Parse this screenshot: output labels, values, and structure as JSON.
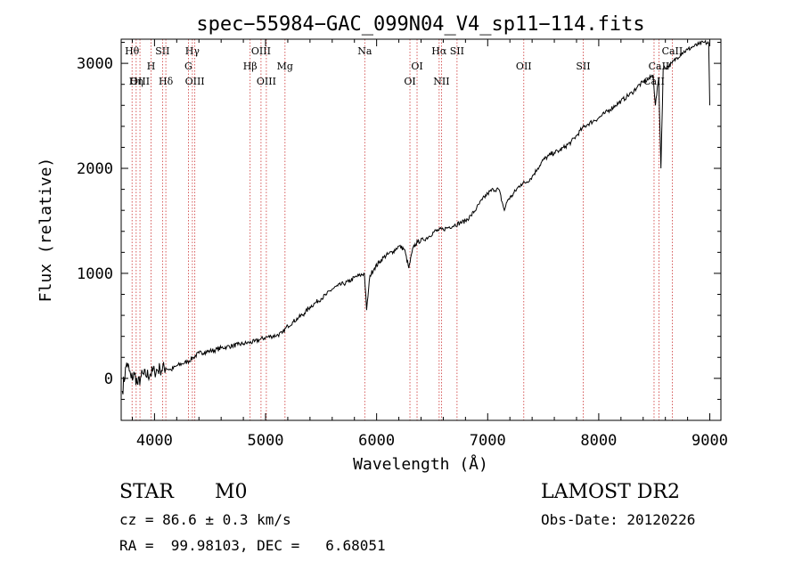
{
  "chart_data": {
    "type": "line",
    "title": "spec−55984−GAC_099N04_V4_sp11−114.fits",
    "xlabel": "Wavelength (Å)",
    "ylabel": "Flux (relative)",
    "xlim": [
      3700,
      9100
    ],
    "ylim": [
      -400,
      3230
    ],
    "xticks": [
      4000,
      5000,
      6000,
      7000,
      8000,
      9000
    ],
    "xtick_labels": [
      "4000",
      "5000",
      "6000",
      "7000",
      "8000",
      "9000"
    ],
    "yticks": [
      0,
      1000,
      2000,
      3000
    ],
    "ytick_labels": [
      "0",
      "1000",
      "2000",
      "3000"
    ],
    "spectrum": {
      "x": [
        3710,
        3750,
        3790,
        3820,
        3850,
        3880,
        3920,
        3960,
        4000,
        4050,
        4100,
        4150,
        4200,
        4250,
        4300,
        4350,
        4400,
        4450,
        4500,
        4550,
        4600,
        4650,
        4700,
        4750,
        4800,
        4850,
        4900,
        4950,
        5000,
        5050,
        5100,
        5150,
        5200,
        5250,
        5300,
        5350,
        5400,
        5450,
        5500,
        5550,
        5600,
        5650,
        5700,
        5750,
        5800,
        5850,
        5890,
        5910,
        5940,
        5980,
        6020,
        6060,
        6100,
        6150,
        6200,
        6250,
        6290,
        6330,
        6370,
        6420,
        6470,
        6520,
        6560,
        6600,
        6650,
        6700,
        6750,
        6800,
        6850,
        6900,
        6950,
        7000,
        7050,
        7100,
        7130,
        7150,
        7180,
        7220,
        7260,
        7300,
        7350,
        7400,
        7450,
        7500,
        7550,
        7600,
        7650,
        7700,
        7750,
        7800,
        7850,
        7900,
        7950,
        8000,
        8050,
        8100,
        8150,
        8200,
        8250,
        8300,
        8350,
        8400,
        8450,
        8490,
        8510,
        8540,
        8560,
        8580,
        8620,
        8660,
        8700,
        8750,
        8800,
        8850,
        8900,
        8950,
        8990,
        9000
      ],
      "y": [
        -120,
        150,
        0,
        40,
        -60,
        20,
        30,
        40,
        70,
        90,
        100,
        80,
        120,
        140,
        160,
        200,
        240,
        250,
        260,
        270,
        290,
        300,
        310,
        320,
        330,
        340,
        350,
        370,
        390,
        400,
        410,
        430,
        500,
        540,
        580,
        620,
        680,
        720,
        760,
        800,
        850,
        880,
        900,
        920,
        960,
        980,
        1000,
        650,
        980,
        1050,
        1100,
        1150,
        1180,
        1210,
        1260,
        1230,
        1050,
        1250,
        1300,
        1320,
        1350,
        1400,
        1410,
        1420,
        1440,
        1460,
        1480,
        1500,
        1550,
        1620,
        1700,
        1760,
        1800,
        1800,
        1680,
        1600,
        1700,
        1740,
        1800,
        1850,
        1870,
        1920,
        2000,
        2080,
        2120,
        2150,
        2170,
        2210,
        2250,
        2310,
        2380,
        2420,
        2450,
        2480,
        2520,
        2560,
        2600,
        2640,
        2680,
        2720,
        2780,
        2820,
        2850,
        2890,
        2600,
        2860,
        2000,
        2950,
        2970,
        3000,
        3050,
        3100,
        3130,
        3160,
        3180,
        3200,
        3190,
        2600
      ]
    },
    "lines": [
      {
        "name": "Hθ",
        "wave": 3798,
        "row": 1
      },
      {
        "name": "OIII",
        "wave": 3869,
        "row": 3
      },
      {
        "name": "H",
        "wave": 3969,
        "row": 2
      },
      {
        "name": "Hη",
        "wave": 3835,
        "row": 3
      },
      {
        "name": "SII",
        "wave": 4072,
        "row": 1
      },
      {
        "name": "Hδ",
        "wave": 4102,
        "row": 3
      },
      {
        "name": "Hγ",
        "wave": 4341,
        "row": 1
      },
      {
        "name": "G",
        "wave": 4305,
        "row": 2
      },
      {
        "name": "OIII",
        "wave": 4363,
        "row": 3
      },
      {
        "name": "OIII",
        "wave": 4959,
        "row": 1
      },
      {
        "name": "Hβ",
        "wave": 4861,
        "row": 2
      },
      {
        "name": "OIII",
        "wave": 5007,
        "row": 3
      },
      {
        "name": "Mg",
        "wave": 5175,
        "row": 2
      },
      {
        "name": "Na",
        "wave": 5893,
        "row": 1
      },
      {
        "name": "OI",
        "wave": 6364,
        "row": 2
      },
      {
        "name": "OI",
        "wave": 6300,
        "row": 3
      },
      {
        "name": "Hα",
        "wave": 6563,
        "row": 1
      },
      {
        "name": "NII",
        "wave": 6584,
        "row": 3
      },
      {
        "name": "SII",
        "wave": 6724,
        "row": 1
      },
      {
        "name": "OII",
        "wave": 7325,
        "row": 2
      },
      {
        "name": "SII",
        "wave": 7860,
        "row": 2
      },
      {
        "name": "CaII",
        "wave": 8662,
        "row": 1
      },
      {
        "name": "CaII",
        "wave": 8542,
        "row": 2
      },
      {
        "name": "CaII",
        "wave": 8498,
        "row": 3
      }
    ]
  },
  "info": {
    "class": "STAR",
    "subclass": "M0",
    "survey": "LAMOST DR2",
    "cz": "cz = 86.6 ± 0.3 km/s",
    "obs_date": "Obs-Date: 20120226",
    "coords": "RA =  99.98103, DEC =   6.68051"
  }
}
